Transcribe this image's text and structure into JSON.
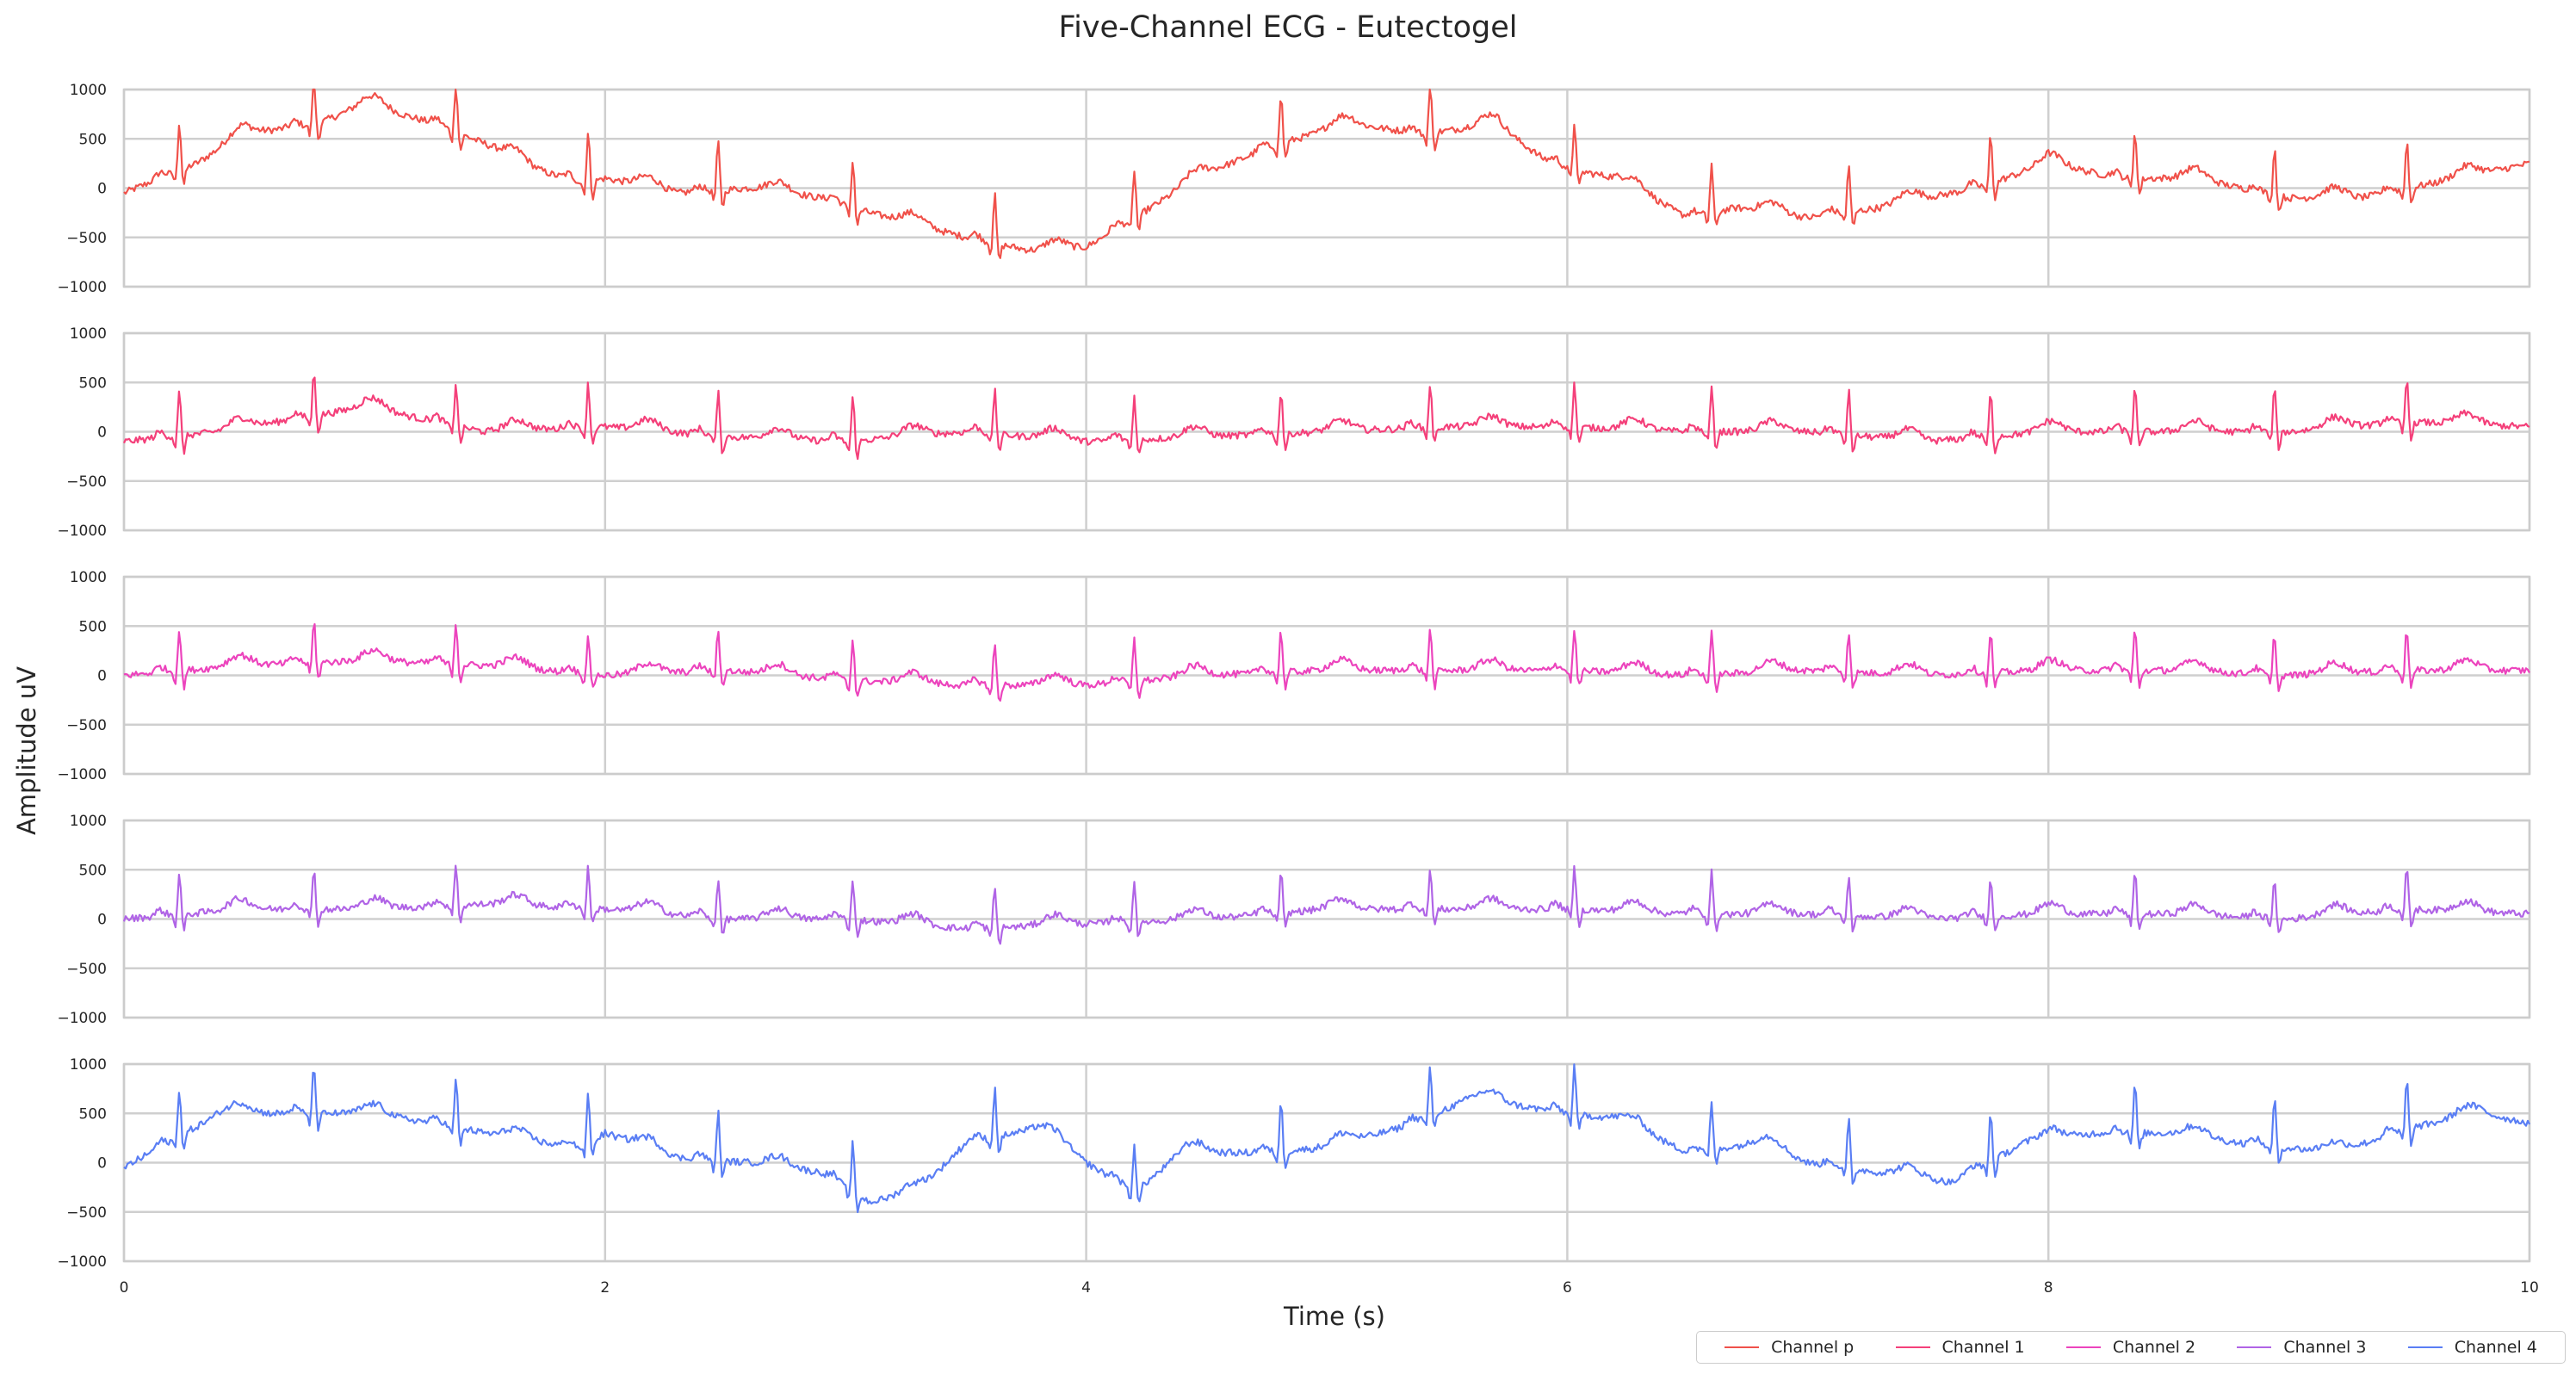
{
  "chart_data": {
    "type": "line",
    "title": "Five-Channel ECG - Eutectogel",
    "xlabel": "Time (s)",
    "ylabel": "Amplitude uV",
    "xlim": [
      0,
      10
    ],
    "ylim": [
      -1000,
      1000
    ],
    "x_ticks": [
      "0",
      "2",
      "4",
      "6",
      "8",
      "10"
    ],
    "y_ticks": [
      "1000",
      "500",
      "0",
      "−500",
      "−1000"
    ],
    "grid": true,
    "legend_placement": "bottom-right",
    "beat_times_s": [
      0.23,
      0.79,
      1.38,
      1.93,
      2.47,
      3.03,
      3.62,
      4.2,
      4.81,
      5.43,
      6.03,
      6.6,
      7.17,
      7.76,
      8.36,
      8.94,
      9.49
    ],
    "series": [
      {
        "name": "Channel p",
        "color": "#f0514a",
        "r_peak_height_uv": 500,
        "baseline_knots": [
          [
            0,
            -50
          ],
          [
            0.3,
            250
          ],
          [
            0.5,
            550
          ],
          [
            0.8,
            650
          ],
          [
            1.0,
            850
          ],
          [
            1.3,
            650
          ],
          [
            1.5,
            450
          ],
          [
            1.7,
            200
          ],
          [
            1.9,
            50
          ],
          [
            2.0,
            100
          ],
          [
            2.3,
            -50
          ],
          [
            2.6,
            0
          ],
          [
            2.9,
            -100
          ],
          [
            3.1,
            -250
          ],
          [
            3.5,
            -500
          ],
          [
            3.8,
            -650
          ],
          [
            4.0,
            -600
          ],
          [
            4.2,
            -300
          ],
          [
            4.5,
            150
          ],
          [
            4.8,
            450
          ],
          [
            5.1,
            650
          ],
          [
            5.4,
            550
          ],
          [
            5.7,
            650
          ],
          [
            5.9,
            300
          ],
          [
            6.0,
            200
          ],
          [
            6.2,
            100
          ],
          [
            6.5,
            -300
          ],
          [
            6.7,
            -200
          ],
          [
            7.0,
            -300
          ],
          [
            7.3,
            -200
          ],
          [
            7.7,
            0
          ],
          [
            8.0,
            250
          ],
          [
            8.3,
            100
          ],
          [
            8.6,
            100
          ],
          [
            9.0,
            -100
          ],
          [
            9.3,
            -100
          ],
          [
            9.6,
            50
          ],
          [
            10,
            250
          ]
        ]
      },
      {
        "name": "Channel 1",
        "color": "#f4407a",
        "r_peak_height_uv": 450,
        "baseline_knots": [
          [
            0,
            -100
          ],
          [
            0.4,
            0
          ],
          [
            1.0,
            250
          ],
          [
            1.5,
            0
          ],
          [
            2.0,
            50
          ],
          [
            2.5,
            -50
          ],
          [
            3.0,
            -100
          ],
          [
            3.5,
            0
          ],
          [
            4.0,
            -100
          ],
          [
            4.5,
            -50
          ],
          [
            5.0,
            0
          ],
          [
            5.5,
            50
          ],
          [
            6.0,
            50
          ],
          [
            6.5,
            0
          ],
          [
            7.0,
            0
          ],
          [
            7.5,
            -100
          ],
          [
            8.0,
            0
          ],
          [
            8.5,
            0
          ],
          [
            9.0,
            0
          ],
          [
            9.5,
            100
          ],
          [
            10,
            50
          ]
        ]
      },
      {
        "name": "Channel 2",
        "color": "#ec44bd",
        "r_peak_height_uv": 430,
        "baseline_knots": [
          [
            0,
            0
          ],
          [
            0.5,
            100
          ],
          [
            1.0,
            150
          ],
          [
            1.5,
            100
          ],
          [
            2.0,
            0
          ],
          [
            2.5,
            50
          ],
          [
            3.0,
            -50
          ],
          [
            3.5,
            -100
          ],
          [
            4.0,
            -100
          ],
          [
            4.5,
            0
          ],
          [
            5.0,
            50
          ],
          [
            5.5,
            50
          ],
          [
            6.0,
            50
          ],
          [
            6.5,
            0
          ],
          [
            7.0,
            50
          ],
          [
            7.5,
            0
          ],
          [
            8.0,
            50
          ],
          [
            8.5,
            50
          ],
          [
            9.0,
            0
          ],
          [
            9.5,
            50
          ],
          [
            10,
            50
          ]
        ]
      },
      {
        "name": "Channel 3",
        "color": "#b064e6",
        "r_peak_height_uv": 430,
        "baseline_knots": [
          [
            0,
            0
          ],
          [
            0.5,
            100
          ],
          [
            1.0,
            100
          ],
          [
            1.5,
            150
          ],
          [
            2.0,
            100
          ],
          [
            2.5,
            0
          ],
          [
            3.0,
            0
          ],
          [
            3.5,
            -100
          ],
          [
            4.0,
            -50
          ],
          [
            4.5,
            0
          ],
          [
            5.0,
            100
          ],
          [
            5.5,
            100
          ],
          [
            6.0,
            100
          ],
          [
            6.5,
            50
          ],
          [
            7.0,
            50
          ],
          [
            7.5,
            0
          ],
          [
            8.0,
            50
          ],
          [
            8.5,
            50
          ],
          [
            9.0,
            0
          ],
          [
            9.5,
            100
          ],
          [
            10,
            50
          ]
        ]
      },
      {
        "name": "Channel 4",
        "color": "#5a7ef4",
        "r_peak_height_uv": 500,
        "baseline_knots": [
          [
            0,
            -50
          ],
          [
            0.4,
            500
          ],
          [
            0.7,
            500
          ],
          [
            1.0,
            500
          ],
          [
            1.3,
            400
          ],
          [
            1.6,
            250
          ],
          [
            1.9,
            150
          ],
          [
            2.0,
            300
          ],
          [
            2.3,
            50
          ],
          [
            2.6,
            0
          ],
          [
            2.9,
            -100
          ],
          [
            3.1,
            -400
          ],
          [
            3.3,
            -300
          ],
          [
            3.5,
            200
          ],
          [
            3.8,
            350
          ],
          [
            4.0,
            0
          ],
          [
            4.2,
            -300
          ],
          [
            4.4,
            100
          ],
          [
            4.7,
            100
          ],
          [
            5.0,
            150
          ],
          [
            5.3,
            350
          ],
          [
            5.6,
            650
          ],
          [
            6.0,
            500
          ],
          [
            6.2,
            450
          ],
          [
            6.5,
            100
          ],
          [
            6.8,
            200
          ],
          [
            7.0,
            0
          ],
          [
            7.3,
            -100
          ],
          [
            7.6,
            -200
          ],
          [
            7.9,
            200
          ],
          [
            8.2,
            300
          ],
          [
            8.5,
            300
          ],
          [
            8.8,
            200
          ],
          [
            9.2,
            100
          ],
          [
            9.5,
            350
          ],
          [
            9.8,
            500
          ],
          [
            10,
            400
          ]
        ]
      }
    ]
  }
}
